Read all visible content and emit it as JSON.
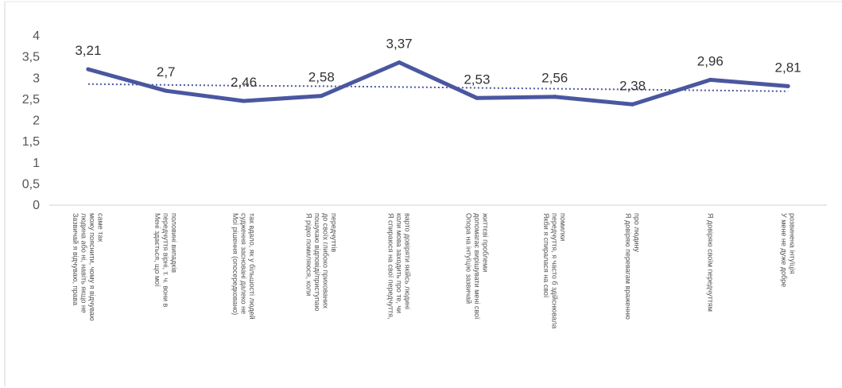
{
  "chart_data": {
    "type": "line",
    "title": "",
    "xlabel": "",
    "ylabel": "",
    "ylim": [
      0,
      4
    ],
    "yticks": [
      "0",
      "0,5",
      "1",
      "1,5",
      "2",
      "2,5",
      "3",
      "3,5",
      "4"
    ],
    "grid": false,
    "legend": "none",
    "categories": [
      [
        "Зазвичай я відчуваю, права",
        "людина або ні, навіть якщо не",
        "можу пояснити, чому я відчуваю",
        "саме так"
      ],
      [
        "Мені здається, що мої",
        "передчуття вірні, т. ч. вони в",
        "половині випадків"
      ],
      [
        "Мої рішення (опосередковано)",
        "судження засновані далеко не",
        "так вдало, як у більшості людей"
      ],
      [
        "Я рідко помиляюся, коли",
        "пошукаю відповіді/приступаю",
        "до своїх глибоко прихованих",
        "передчуттів"
      ],
      [
        "Я спираюся на свої передчуття,",
        "коли мова заходить про те, чи",
        "варто довіряти якійсь людині"
      ],
      [
        "Опора на інтуїцію зазвичай",
        "допомагає вирішувати мені свої",
        "життєві проблеми"
      ],
      [
        "Якби я спиралася на свої",
        "передчуття, я часто б здійснювала",
        "помилки"
      ],
      [
        "Я довіряю перевагам враженню",
        "про людину"
      ],
      [
        "Я довіряю своїм передчуттям"
      ],
      [
        "У мене не дуже добре",
        "розвинена інтуїція"
      ]
    ],
    "series": [
      {
        "values": [
          3.21,
          2.7,
          2.46,
          2.58,
          3.37,
          2.53,
          2.56,
          2.38,
          2.96,
          2.81
        ],
        "labels": [
          "3,21",
          "2,7",
          "2,46",
          "2,58",
          "3,37",
          "2,53",
          "2,56",
          "2,38",
          "2,96",
          "2,81"
        ],
        "color": "#4A57A0",
        "style": "solid"
      },
      {
        "values": [
          2.86,
          2.84,
          2.82,
          2.81,
          2.79,
          2.77,
          2.75,
          2.73,
          2.71,
          2.69
        ],
        "color": "#4A57A0",
        "style": "dotted"
      }
    ]
  }
}
